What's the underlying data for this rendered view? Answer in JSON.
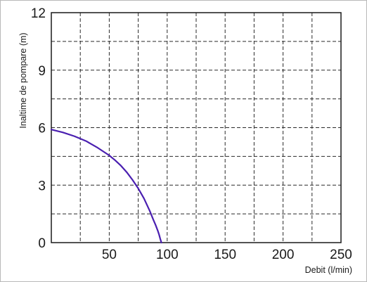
{
  "chart_data": {
    "type": "line",
    "title": "",
    "xlabel": "Debit (l/min)",
    "ylabel": "Inaltime de pompare (m)",
    "xlim": [
      0,
      250
    ],
    "ylim": [
      0,
      12
    ],
    "x_ticks": [
      0,
      25,
      50,
      75,
      100,
      125,
      150,
      175,
      200,
      225,
      250
    ],
    "x_tick_labels": [
      "",
      "",
      "50",
      "",
      "100",
      "",
      "150",
      "",
      "200",
      "",
      "250"
    ],
    "y_ticks": [
      0,
      1.5,
      3,
      4.5,
      6,
      7.5,
      9,
      10.5,
      12
    ],
    "y_tick_labels": [
      "0",
      "",
      "3",
      "",
      "6",
      "",
      "9",
      "",
      "12"
    ],
    "grid": true,
    "series": [
      {
        "color": "#4a1fb0",
        "x": [
          0,
          10,
          20,
          30,
          40,
          50,
          55,
          60,
          65,
          70,
          75,
          80,
          85,
          88,
          90,
          92,
          93,
          94,
          95
        ],
        "y": [
          5.9,
          5.75,
          5.55,
          5.3,
          4.95,
          4.55,
          4.3,
          4.02,
          3.68,
          3.28,
          2.83,
          2.3,
          1.65,
          1.2,
          0.92,
          0.6,
          0.42,
          0.2,
          0
        ]
      }
    ]
  }
}
